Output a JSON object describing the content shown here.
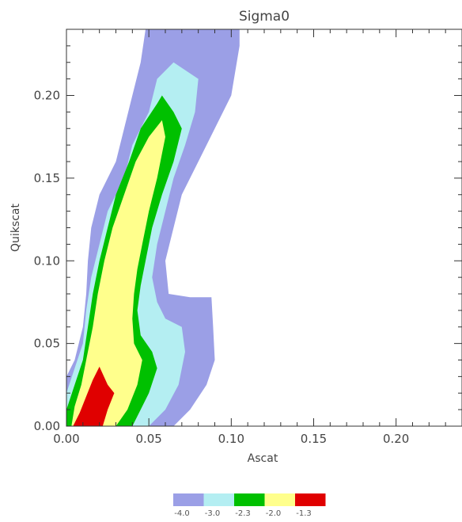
{
  "chart_data": {
    "type": "contour",
    "title": "Sigma0",
    "xlabel": "Ascat",
    "ylabel": "Quikscat",
    "xlim": [
      0,
      0.24
    ],
    "ylim": [
      0,
      0.24
    ],
    "x_ticks": [
      "0.00",
      "0.05",
      "0.10",
      "0.15",
      "0.20"
    ],
    "y_ticks": [
      "0.00",
      "0.05",
      "0.10",
      "0.15",
      "0.20"
    ],
    "grid": false,
    "legend_position": "bottom",
    "levels": [
      {
        "label": "-4.0",
        "color": "#9B9FE6"
      },
      {
        "label": "-3.0",
        "color": "#B4EEF2"
      },
      {
        "label": "-2.3",
        "color": "#00C000"
      },
      {
        "label": "-2.0",
        "color": "#FFFF8C"
      },
      {
        "label": "-1.3",
        "color": "#E00000"
      }
    ],
    "contours": [
      {
        "level": "-4.0",
        "color": "#9B9FE6",
        "points": [
          [
            0,
            0
          ],
          [
            0,
            0.03
          ],
          [
            0.005,
            0.04
          ],
          [
            0.01,
            0.06
          ],
          [
            0.012,
            0.08
          ],
          [
            0.013,
            0.1
          ],
          [
            0.015,
            0.12
          ],
          [
            0.02,
            0.14
          ],
          [
            0.03,
            0.16
          ],
          [
            0.035,
            0.18
          ],
          [
            0.04,
            0.2
          ],
          [
            0.045,
            0.22
          ],
          [
            0.048,
            0.24
          ],
          [
            0.105,
            0.24
          ],
          [
            0.105,
            0.23
          ],
          [
            0.1,
            0.2
          ],
          [
            0.09,
            0.18
          ],
          [
            0.08,
            0.16
          ],
          [
            0.07,
            0.14
          ],
          [
            0.065,
            0.12
          ],
          [
            0.06,
            0.1
          ],
          [
            0.062,
            0.08
          ],
          [
            0.075,
            0.078
          ],
          [
            0.088,
            0.078
          ],
          [
            0.089,
            0.06
          ],
          [
            0.09,
            0.04
          ],
          [
            0.085,
            0.025
          ],
          [
            0.075,
            0.01
          ],
          [
            0.065,
            0
          ]
        ]
      },
      {
        "level": "-3.0",
        "color": "#B4EEF2",
        "points": [
          [
            0,
            0
          ],
          [
            0,
            0.02
          ],
          [
            0.005,
            0.035
          ],
          [
            0.01,
            0.05
          ],
          [
            0.012,
            0.07
          ],
          [
            0.015,
            0.09
          ],
          [
            0.02,
            0.11
          ],
          [
            0.025,
            0.13
          ],
          [
            0.035,
            0.15
          ],
          [
            0.04,
            0.17
          ],
          [
            0.05,
            0.19
          ],
          [
            0.055,
            0.21
          ],
          [
            0.065,
            0.22
          ],
          [
            0.08,
            0.21
          ],
          [
            0.078,
            0.19
          ],
          [
            0.072,
            0.17
          ],
          [
            0.065,
            0.15
          ],
          [
            0.06,
            0.13
          ],
          [
            0.055,
            0.11
          ],
          [
            0.052,
            0.09
          ],
          [
            0.055,
            0.075
          ],
          [
            0.06,
            0.065
          ],
          [
            0.07,
            0.06
          ],
          [
            0.072,
            0.045
          ],
          [
            0.068,
            0.025
          ],
          [
            0.06,
            0.01
          ],
          [
            0.05,
            0
          ]
        ]
      },
      {
        "level": "-2.3",
        "color": "#00C000",
        "points": [
          [
            0,
            0
          ],
          [
            0,
            0.01
          ],
          [
            0.005,
            0.025
          ],
          [
            0.01,
            0.04
          ],
          [
            0.013,
            0.06
          ],
          [
            0.016,
            0.08
          ],
          [
            0.02,
            0.1
          ],
          [
            0.025,
            0.12
          ],
          [
            0.03,
            0.14
          ],
          [
            0.038,
            0.16
          ],
          [
            0.045,
            0.18
          ],
          [
            0.055,
            0.195
          ],
          [
            0.058,
            0.2
          ],
          [
            0.065,
            0.19
          ],
          [
            0.07,
            0.18
          ],
          [
            0.065,
            0.16
          ],
          [
            0.058,
            0.14
          ],
          [
            0.052,
            0.12
          ],
          [
            0.048,
            0.1
          ],
          [
            0.045,
            0.085
          ],
          [
            0.043,
            0.07
          ],
          [
            0.045,
            0.055
          ],
          [
            0.052,
            0.045
          ],
          [
            0.055,
            0.035
          ],
          [
            0.05,
            0.02
          ],
          [
            0.045,
            0.01
          ],
          [
            0.04,
            0
          ]
        ]
      },
      {
        "level": "-2.0",
        "color": "#FFFF8C",
        "points": [
          [
            0.003,
            0
          ],
          [
            0.005,
            0.012
          ],
          [
            0.009,
            0.025
          ],
          [
            0.012,
            0.04
          ],
          [
            0.016,
            0.06
          ],
          [
            0.019,
            0.08
          ],
          [
            0.023,
            0.1
          ],
          [
            0.028,
            0.12
          ],
          [
            0.035,
            0.14
          ],
          [
            0.042,
            0.16
          ],
          [
            0.05,
            0.175
          ],
          [
            0.058,
            0.185
          ],
          [
            0.06,
            0.175
          ],
          [
            0.055,
            0.15
          ],
          [
            0.05,
            0.13
          ],
          [
            0.046,
            0.11
          ],
          [
            0.043,
            0.095
          ],
          [
            0.041,
            0.08
          ],
          [
            0.04,
            0.065
          ],
          [
            0.041,
            0.05
          ],
          [
            0.046,
            0.04
          ],
          [
            0.043,
            0.025
          ],
          [
            0.037,
            0.01
          ],
          [
            0.03,
            0
          ]
        ]
      },
      {
        "level": "-1.3",
        "color": "#E00000",
        "points": [
          [
            0.004,
            0
          ],
          [
            0.008,
            0.008
          ],
          [
            0.012,
            0.018
          ],
          [
            0.016,
            0.028
          ],
          [
            0.02,
            0.036
          ],
          [
            0.025,
            0.025
          ],
          [
            0.029,
            0.02
          ],
          [
            0.025,
            0.01
          ],
          [
            0.022,
            0
          ]
        ]
      }
    ]
  }
}
